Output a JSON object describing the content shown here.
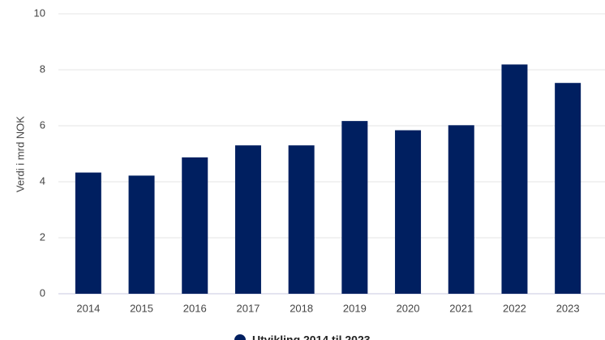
{
  "chart_data": {
    "type": "bar",
    "y_label": "Verdi i mrd NOK",
    "categories": [
      "2014",
      "2015",
      "2016",
      "2017",
      "2018",
      "2019",
      "2020",
      "2021",
      "2022",
      "2023"
    ],
    "series": [
      {
        "name": "Utvikling 2014 til 2023",
        "color": "#001f60",
        "values": [
          4.33,
          4.22,
          4.87,
          5.3,
          5.3,
          6.17,
          5.84,
          6.02,
          8.19,
          7.53
        ]
      }
    ],
    "ylim": [
      0,
      10
    ],
    "yticks": [
      0,
      2,
      4,
      6,
      8,
      10
    ],
    "grid": true,
    "legend": "bottom"
  }
}
